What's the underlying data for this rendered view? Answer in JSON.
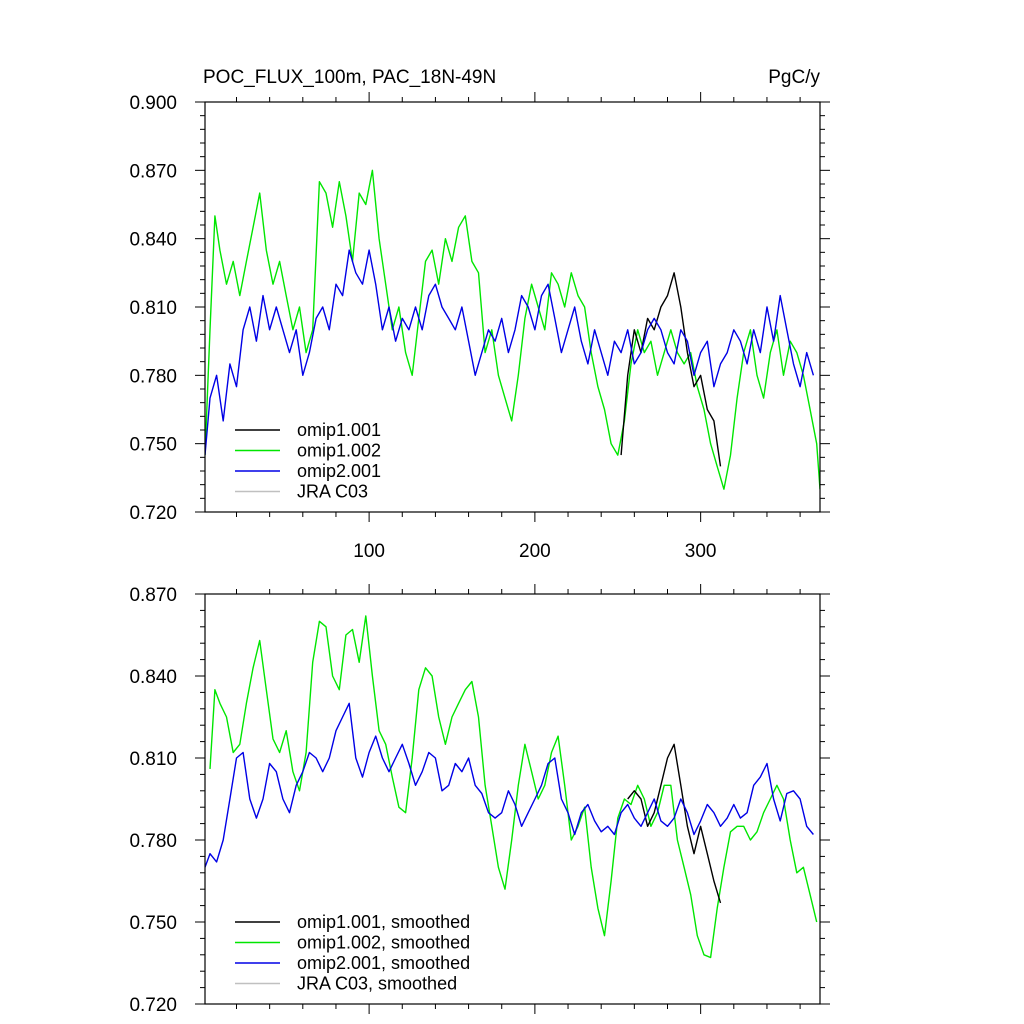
{
  "figure": {
    "title_left": "POC_FLUX_100m, PAC_18N-49N",
    "title_right": "PgC/y"
  },
  "chart_data": [
    {
      "type": "line",
      "panel": "top",
      "title": "POC_FLUX_100m, PAC_18N-49N",
      "units": "PgC/y",
      "xlim": [
        1,
        372
      ],
      "ylim": [
        0.72,
        0.9
      ],
      "yticks": [
        0.72,
        0.75,
        0.78,
        0.81,
        0.84,
        0.87,
        0.9
      ],
      "ytick_labels": [
        "0.720",
        "0.750",
        "0.780",
        "0.810",
        "0.840",
        "0.870",
        "0.900"
      ],
      "xticks": [
        100,
        200,
        300
      ],
      "xtick_labels": [
        "100",
        "200",
        "300"
      ],
      "legend_position": "bottom-left",
      "series": [
        {
          "name": "omip1.002",
          "color": "#00e600",
          "x": [
            1,
            4,
            7,
            10,
            14,
            18,
            22,
            26,
            30,
            34,
            38,
            42,
            46,
            50,
            54,
            58,
            62,
            66,
            70,
            74,
            78,
            82,
            86,
            90,
            94,
            98,
            102,
            106,
            110,
            114,
            118,
            122,
            126,
            130,
            134,
            138,
            142,
            146,
            150,
            154,
            158,
            162,
            166,
            170,
            174,
            178,
            182,
            186,
            190,
            194,
            198,
            202,
            206,
            210,
            214,
            218,
            222,
            226,
            230,
            234,
            238,
            242,
            246,
            250,
            254,
            258,
            262,
            266,
            270,
            274,
            278,
            282,
            286,
            290,
            294,
            298,
            302,
            306,
            310,
            314,
            318,
            322,
            326,
            330,
            334,
            338,
            342,
            346,
            350,
            354,
            358,
            362,
            366,
            370,
            372
          ],
          "values": [
            0.745,
            0.8,
            0.85,
            0.835,
            0.82,
            0.83,
            0.815,
            0.83,
            0.845,
            0.86,
            0.835,
            0.82,
            0.83,
            0.815,
            0.8,
            0.81,
            0.79,
            0.8,
            0.865,
            0.86,
            0.845,
            0.865,
            0.85,
            0.83,
            0.86,
            0.855,
            0.87,
            0.84,
            0.82,
            0.8,
            0.81,
            0.79,
            0.78,
            0.805,
            0.83,
            0.835,
            0.82,
            0.84,
            0.83,
            0.845,
            0.85,
            0.83,
            0.825,
            0.79,
            0.8,
            0.78,
            0.77,
            0.76,
            0.78,
            0.805,
            0.82,
            0.81,
            0.8,
            0.825,
            0.82,
            0.81,
            0.825,
            0.815,
            0.81,
            0.79,
            0.775,
            0.765,
            0.75,
            0.745,
            0.76,
            0.785,
            0.8,
            0.79,
            0.795,
            0.78,
            0.79,
            0.8,
            0.79,
            0.785,
            0.79,
            0.775,
            0.765,
            0.75,
            0.74,
            0.73,
            0.745,
            0.77,
            0.79,
            0.8,
            0.78,
            0.77,
            0.79,
            0.8,
            0.78,
            0.795,
            0.79,
            0.78,
            0.765,
            0.75,
            0.73
          ]
        },
        {
          "name": "omip1.001",
          "color": "#000000",
          "x": [
            252,
            256,
            260,
            264,
            268,
            272,
            276,
            280,
            284,
            288,
            292,
            296,
            300,
            304,
            308,
            312
          ],
          "values": [
            0.745,
            0.78,
            0.8,
            0.79,
            0.805,
            0.8,
            0.81,
            0.815,
            0.825,
            0.81,
            0.79,
            0.775,
            0.78,
            0.765,
            0.76,
            0.74
          ]
        },
        {
          "name": "omip2.001",
          "color": "#0000e6",
          "x": [
            1,
            4,
            8,
            12,
            16,
            20,
            24,
            28,
            32,
            36,
            40,
            44,
            48,
            52,
            56,
            60,
            64,
            68,
            72,
            76,
            80,
            84,
            88,
            92,
            96,
            100,
            104,
            108,
            112,
            116,
            120,
            124,
            128,
            132,
            136,
            140,
            144,
            148,
            152,
            156,
            160,
            164,
            168,
            172,
            176,
            180,
            184,
            188,
            192,
            196,
            200,
            204,
            208,
            212,
            216,
            220,
            224,
            228,
            232,
            236,
            240,
            244,
            248,
            252,
            256,
            260,
            264,
            268,
            272,
            276,
            280,
            284,
            288,
            292,
            296,
            300,
            304,
            308,
            312,
            316,
            320,
            324,
            328,
            332,
            336,
            340,
            344,
            348,
            352,
            356,
            360,
            364,
            368
          ],
          "values": [
            0.745,
            0.77,
            0.78,
            0.76,
            0.785,
            0.775,
            0.8,
            0.81,
            0.795,
            0.815,
            0.8,
            0.81,
            0.8,
            0.79,
            0.8,
            0.78,
            0.79,
            0.805,
            0.81,
            0.8,
            0.82,
            0.815,
            0.835,
            0.825,
            0.82,
            0.835,
            0.82,
            0.8,
            0.81,
            0.795,
            0.805,
            0.8,
            0.81,
            0.8,
            0.815,
            0.82,
            0.81,
            0.805,
            0.8,
            0.81,
            0.795,
            0.78,
            0.79,
            0.8,
            0.795,
            0.805,
            0.79,
            0.8,
            0.815,
            0.81,
            0.8,
            0.815,
            0.82,
            0.805,
            0.79,
            0.8,
            0.81,
            0.795,
            0.785,
            0.8,
            0.79,
            0.78,
            0.795,
            0.79,
            0.8,
            0.785,
            0.79,
            0.8,
            0.805,
            0.8,
            0.79,
            0.785,
            0.8,
            0.795,
            0.78,
            0.79,
            0.795,
            0.775,
            0.785,
            0.79,
            0.8,
            0.795,
            0.785,
            0.8,
            0.79,
            0.81,
            0.795,
            0.815,
            0.8,
            0.785,
            0.775,
            0.79,
            0.78
          ]
        },
        {
          "name": "JRA C03",
          "color": "#c0c0c0",
          "x": [],
          "values": []
        }
      ]
    },
    {
      "type": "line",
      "panel": "bottom",
      "xlim": [
        1,
        372
      ],
      "ylim": [
        0.72,
        0.87
      ],
      "yticks": [
        0.72,
        0.75,
        0.78,
        0.81,
        0.84,
        0.87
      ],
      "ytick_labels": [
        "0.720",
        "0.750",
        "0.780",
        "0.810",
        "0.840",
        "0.870"
      ],
      "xticks": [
        100,
        200,
        300
      ],
      "legend_position": "bottom-left",
      "series": [
        {
          "name": "omip1.002, smoothed",
          "color": "#00e600",
          "x": [
            4,
            7,
            10,
            14,
            18,
            22,
            26,
            30,
            34,
            38,
            42,
            46,
            50,
            54,
            58,
            62,
            66,
            70,
            74,
            78,
            82,
            86,
            90,
            94,
            98,
            102,
            106,
            110,
            114,
            118,
            122,
            126,
            130,
            134,
            138,
            142,
            146,
            150,
            154,
            158,
            162,
            166,
            170,
            174,
            178,
            182,
            186,
            190,
            194,
            198,
            202,
            206,
            210,
            214,
            218,
            222,
            226,
            230,
            234,
            238,
            242,
            246,
            250,
            254,
            258,
            262,
            266,
            270,
            274,
            278,
            282,
            286,
            290,
            294,
            298,
            302,
            306,
            310,
            314,
            318,
            322,
            326,
            330,
            334,
            338,
            342,
            346,
            350,
            354,
            358,
            362,
            366,
            370
          ],
          "values": [
            0.806,
            0.835,
            0.83,
            0.825,
            0.812,
            0.815,
            0.83,
            0.843,
            0.853,
            0.835,
            0.817,
            0.812,
            0.82,
            0.805,
            0.798,
            0.812,
            0.845,
            0.86,
            0.858,
            0.84,
            0.835,
            0.855,
            0.857,
            0.845,
            0.862,
            0.84,
            0.82,
            0.815,
            0.803,
            0.792,
            0.79,
            0.81,
            0.835,
            0.843,
            0.84,
            0.825,
            0.815,
            0.825,
            0.83,
            0.835,
            0.838,
            0.825,
            0.8,
            0.785,
            0.77,
            0.762,
            0.78,
            0.8,
            0.815,
            0.805,
            0.795,
            0.8,
            0.812,
            0.818,
            0.8,
            0.78,
            0.785,
            0.792,
            0.77,
            0.755,
            0.745,
            0.765,
            0.788,
            0.795,
            0.793,
            0.8,
            0.795,
            0.785,
            0.79,
            0.8,
            0.8,
            0.78,
            0.77,
            0.76,
            0.745,
            0.738,
            0.737,
            0.755,
            0.77,
            0.783,
            0.785,
            0.785,
            0.78,
            0.783,
            0.79,
            0.795,
            0.8,
            0.795,
            0.78,
            0.768,
            0.77,
            0.76,
            0.75
          ]
        },
        {
          "name": "omip1.001, smoothed",
          "color": "#000000",
          "x": [
            256,
            260,
            264,
            268,
            272,
            276,
            280,
            284,
            288,
            292,
            296,
            300,
            304,
            308,
            312
          ],
          "values": [
            0.795,
            0.798,
            0.795,
            0.785,
            0.79,
            0.8,
            0.81,
            0.815,
            0.8,
            0.785,
            0.775,
            0.785,
            0.775,
            0.765,
            0.757
          ]
        },
        {
          "name": "omip2.001, smoothed",
          "color": "#0000e6",
          "x": [
            1,
            4,
            8,
            12,
            16,
            20,
            24,
            28,
            32,
            36,
            40,
            44,
            48,
            52,
            56,
            60,
            64,
            68,
            72,
            76,
            80,
            84,
            88,
            92,
            96,
            100,
            104,
            108,
            112,
            116,
            120,
            124,
            128,
            132,
            136,
            140,
            144,
            148,
            152,
            156,
            160,
            164,
            168,
            172,
            176,
            180,
            184,
            188,
            192,
            196,
            200,
            204,
            208,
            212,
            216,
            220,
            224,
            228,
            232,
            236,
            240,
            244,
            248,
            252,
            256,
            260,
            264,
            268,
            272,
            276,
            280,
            284,
            288,
            292,
            296,
            300,
            304,
            308,
            312,
            316,
            320,
            324,
            328,
            332,
            336,
            340,
            344,
            348,
            352,
            356,
            360,
            364,
            368
          ],
          "values": [
            0.77,
            0.775,
            0.772,
            0.78,
            0.795,
            0.81,
            0.812,
            0.795,
            0.788,
            0.795,
            0.808,
            0.805,
            0.795,
            0.79,
            0.8,
            0.805,
            0.812,
            0.81,
            0.805,
            0.81,
            0.82,
            0.825,
            0.83,
            0.81,
            0.803,
            0.812,
            0.818,
            0.81,
            0.805,
            0.81,
            0.815,
            0.808,
            0.8,
            0.805,
            0.812,
            0.81,
            0.798,
            0.8,
            0.808,
            0.805,
            0.81,
            0.8,
            0.797,
            0.79,
            0.788,
            0.79,
            0.798,
            0.793,
            0.785,
            0.79,
            0.795,
            0.8,
            0.808,
            0.81,
            0.795,
            0.79,
            0.782,
            0.79,
            0.793,
            0.787,
            0.783,
            0.785,
            0.782,
            0.79,
            0.793,
            0.788,
            0.785,
            0.79,
            0.795,
            0.787,
            0.785,
            0.788,
            0.795,
            0.79,
            0.782,
            0.787,
            0.793,
            0.79,
            0.785,
            0.788,
            0.793,
            0.788,
            0.79,
            0.8,
            0.803,
            0.808,
            0.795,
            0.787,
            0.797,
            0.798,
            0.795,
            0.785,
            0.782
          ]
        },
        {
          "name": "JRA C03, smoothed",
          "color": "#c0c0c0",
          "x": [],
          "values": []
        }
      ]
    }
  ]
}
